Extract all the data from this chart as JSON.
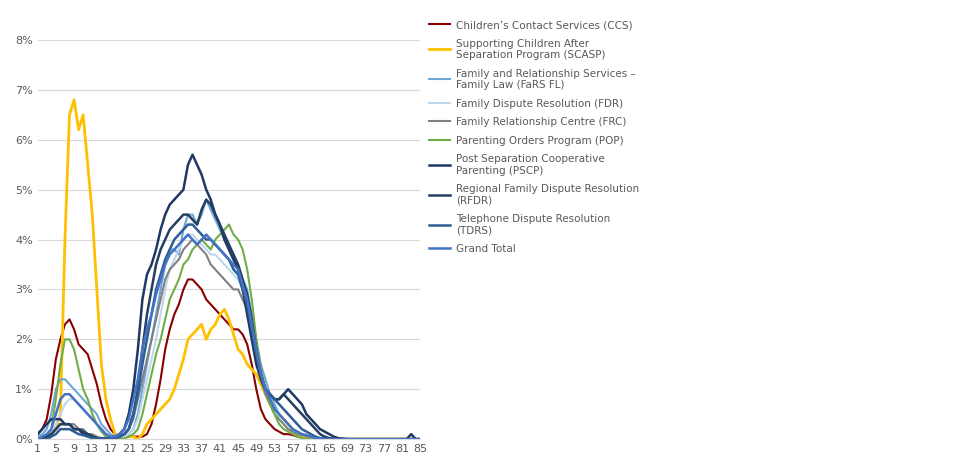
{
  "ages": [
    1,
    2,
    3,
    4,
    5,
    6,
    7,
    8,
    9,
    10,
    11,
    12,
    13,
    14,
    15,
    16,
    17,
    18,
    19,
    20,
    21,
    22,
    23,
    24,
    25,
    26,
    27,
    28,
    29,
    30,
    31,
    32,
    33,
    34,
    35,
    36,
    37,
    38,
    39,
    40,
    41,
    42,
    43,
    44,
    45,
    46,
    47,
    48,
    49,
    50,
    51,
    52,
    53,
    54,
    55,
    56,
    57,
    58,
    59,
    60,
    61,
    62,
    63,
    64,
    65,
    66,
    67,
    68,
    69,
    70,
    71,
    72,
    73,
    74,
    75,
    76,
    77,
    78,
    79,
    80,
    81,
    82,
    83,
    84,
    85
  ],
  "series": {
    "CCS": {
      "color": "#8B0000",
      "linewidth": 1.5,
      "label": "Children’s Contact Services (CCS)",
      "data": [
        0.1,
        0.2,
        0.4,
        0.9,
        1.6,
        2.0,
        2.3,
        2.4,
        2.2,
        1.9,
        1.8,
        1.7,
        1.4,
        1.1,
        0.7,
        0.4,
        0.2,
        0.1,
        0.05,
        0.05,
        0.05,
        0.05,
        0.05,
        0.05,
        0.1,
        0.3,
        0.7,
        1.2,
        1.8,
        2.2,
        2.5,
        2.7,
        3.0,
        3.2,
        3.2,
        3.1,
        3.0,
        2.8,
        2.7,
        2.6,
        2.5,
        2.4,
        2.3,
        2.2,
        2.2,
        2.1,
        1.9,
        1.5,
        1.0,
        0.6,
        0.4,
        0.3,
        0.2,
        0.15,
        0.1,
        0.1,
        0.08,
        0.05,
        0.05,
        0.05,
        0.05,
        0.02,
        0.01,
        0.01,
        0.0,
        0.0,
        0.0,
        0.0,
        0.0,
        0.0,
        0.0,
        0.0,
        0.0,
        0.0,
        0.0,
        0.0,
        0.0,
        0.0,
        0.0,
        0.0,
        0.0,
        0.0,
        0.0,
        0.0,
        0.0
      ]
    },
    "SCASP": {
      "color": "#FFC000",
      "linewidth": 2.0,
      "label": "Supporting Children After\nSeparation Program (SCASP)",
      "data": [
        0.0,
        0.0,
        0.0,
        0.1,
        0.2,
        0.5,
        4.0,
        6.5,
        6.8,
        6.2,
        6.5,
        5.5,
        4.5,
        3.0,
        1.5,
        0.8,
        0.4,
        0.1,
        0.05,
        0.05,
        0.05,
        0.05,
        0.0,
        0.1,
        0.3,
        0.4,
        0.5,
        0.6,
        0.7,
        0.8,
        1.0,
        1.3,
        1.6,
        2.0,
        2.1,
        2.2,
        2.3,
        2.0,
        2.2,
        2.3,
        2.5,
        2.6,
        2.4,
        2.1,
        1.8,
        1.7,
        1.5,
        1.4,
        1.3,
        1.1,
        0.9,
        0.7,
        0.6,
        0.5,
        0.4,
        0.3,
        0.2,
        0.1,
        0.05,
        0.0,
        0.0,
        0.0,
        0.0,
        0.0,
        0.0,
        0.0,
        0.0,
        0.0,
        0.0,
        0.0,
        0.0,
        0.0,
        0.0,
        0.0,
        0.0,
        0.0,
        0.0,
        0.0,
        0.0,
        0.0,
        0.0,
        0.0,
        0.0,
        0.0,
        0.0
      ]
    },
    "FaRS_FL": {
      "color": "#6EA6D4",
      "linewidth": 1.5,
      "label": "Family and Relationship Services –\nFamily Law (FaRS FL)",
      "data": [
        0.05,
        0.1,
        0.2,
        0.5,
        1.0,
        1.2,
        1.2,
        1.1,
        1.0,
        0.9,
        0.8,
        0.7,
        0.6,
        0.5,
        0.3,
        0.2,
        0.1,
        0.05,
        0.05,
        0.05,
        0.1,
        0.2,
        0.5,
        1.0,
        1.5,
        2.0,
        2.5,
        3.0,
        3.5,
        3.8,
        3.8,
        3.7,
        4.2,
        4.5,
        4.5,
        4.3,
        4.5,
        4.8,
        4.6,
        4.4,
        4.2,
        4.0,
        3.8,
        3.6,
        3.5,
        3.2,
        3.0,
        2.5,
        2.0,
        1.5,
        1.2,
        0.9,
        0.7,
        0.5,
        0.4,
        0.3,
        0.2,
        0.15,
        0.1,
        0.08,
        0.05,
        0.02,
        0.01,
        0.0,
        0.0,
        0.0,
        0.0,
        0.0,
        0.0,
        0.0,
        0.0,
        0.0,
        0.0,
        0.0,
        0.0,
        0.0,
        0.0,
        0.0,
        0.0,
        0.0,
        0.0,
        0.0,
        0.0,
        0.0,
        0.0
      ]
    },
    "FDR": {
      "color": "#BDD7EE",
      "linewidth": 1.5,
      "label": "Family Dispute Resolution (FDR)",
      "data": [
        0.0,
        0.02,
        0.05,
        0.1,
        0.3,
        0.5,
        0.7,
        0.8,
        0.8,
        0.7,
        0.6,
        0.5,
        0.4,
        0.3,
        0.2,
        0.1,
        0.05,
        0.02,
        0.02,
        0.05,
        0.1,
        0.2,
        0.4,
        0.8,
        1.2,
        1.6,
        2.0,
        2.5,
        3.0,
        3.4,
        3.6,
        3.8,
        4.0,
        4.1,
        4.1,
        4.0,
        3.9,
        3.8,
        3.7,
        3.7,
        3.6,
        3.5,
        3.4,
        3.3,
        3.2,
        3.0,
        2.8,
        2.4,
        1.8,
        1.3,
        1.0,
        0.8,
        0.6,
        0.4,
        0.3,
        0.2,
        0.15,
        0.1,
        0.08,
        0.06,
        0.04,
        0.02,
        0.01,
        0.0,
        0.0,
        0.0,
        0.0,
        0.0,
        0.0,
        0.0,
        0.0,
        0.0,
        0.0,
        0.0,
        0.0,
        0.0,
        0.0,
        0.0,
        0.0,
        0.0,
        0.0,
        0.0,
        0.0,
        0.0,
        0.0
      ]
    },
    "FRC": {
      "color": "#808080",
      "linewidth": 1.5,
      "label": "Family Relationship Centre (FRC)",
      "data": [
        0.0,
        0.02,
        0.05,
        0.1,
        0.2,
        0.3,
        0.3,
        0.3,
        0.3,
        0.2,
        0.2,
        0.1,
        0.1,
        0.05,
        0.02,
        0.01,
        0.01,
        0.02,
        0.05,
        0.1,
        0.2,
        0.4,
        0.8,
        1.2,
        1.6,
        2.0,
        2.4,
        2.8,
        3.2,
        3.4,
        3.5,
        3.6,
        3.8,
        3.9,
        4.0,
        3.9,
        3.8,
        3.7,
        3.5,
        3.4,
        3.3,
        3.2,
        3.1,
        3.0,
        3.0,
        2.8,
        2.6,
        2.2,
        1.7,
        1.2,
        0.9,
        0.7,
        0.5,
        0.4,
        0.3,
        0.2,
        0.15,
        0.1,
        0.08,
        0.06,
        0.04,
        0.02,
        0.01,
        0.0,
        0.0,
        0.0,
        0.0,
        0.0,
        0.0,
        0.0,
        0.0,
        0.0,
        0.0,
        0.0,
        0.0,
        0.0,
        0.0,
        0.0,
        0.0,
        0.0,
        0.0,
        0.0,
        0.0,
        0.0,
        0.0
      ]
    },
    "POP": {
      "color": "#70AD47",
      "linewidth": 1.5,
      "label": "Parenting Orders Program (POP)",
      "data": [
        0.0,
        0.02,
        0.05,
        0.2,
        0.8,
        1.5,
        2.0,
        2.0,
        1.8,
        1.4,
        1.0,
        0.8,
        0.5,
        0.3,
        0.15,
        0.05,
        0.02,
        0.01,
        0.01,
        0.01,
        0.05,
        0.1,
        0.2,
        0.5,
        0.9,
        1.3,
        1.7,
        2.0,
        2.4,
        2.8,
        3.0,
        3.2,
        3.5,
        3.6,
        3.8,
        3.9,
        4.0,
        3.9,
        3.8,
        4.0,
        4.1,
        4.2,
        4.3,
        4.1,
        4.0,
        3.8,
        3.4,
        2.8,
        2.0,
        1.4,
        1.0,
        0.7,
        0.5,
        0.3,
        0.2,
        0.15,
        0.1,
        0.05,
        0.02,
        0.01,
        0.0,
        0.0,
        0.0,
        0.0,
        0.0,
        0.0,
        0.0,
        0.0,
        0.0,
        0.0,
        0.0,
        0.0,
        0.0,
        0.0,
        0.0,
        0.0,
        0.0,
        0.0,
        0.0,
        0.0,
        0.0,
        0.0,
        0.0,
        0.0,
        0.0
      ]
    },
    "PSCP": {
      "color": "#1F3864",
      "linewidth": 1.8,
      "label": "Post Separation Cooperative\nParenting (PSCP)",
      "data": [
        0.1,
        0.2,
        0.3,
        0.4,
        0.4,
        0.4,
        0.3,
        0.3,
        0.2,
        0.2,
        0.1,
        0.1,
        0.05,
        0.02,
        0.01,
        0.01,
        0.01,
        0.05,
        0.1,
        0.2,
        0.5,
        1.0,
        1.8,
        2.8,
        3.3,
        3.5,
        3.8,
        4.2,
        4.5,
        4.7,
        4.8,
        4.9,
        5.0,
        5.5,
        5.7,
        5.5,
        5.3,
        5.0,
        4.8,
        4.5,
        4.3,
        4.0,
        3.8,
        3.6,
        3.4,
        3.0,
        2.5,
        2.0,
        1.5,
        1.2,
        1.0,
        0.9,
        0.8,
        0.8,
        0.9,
        1.0,
        0.9,
        0.8,
        0.7,
        0.5,
        0.4,
        0.3,
        0.2,
        0.15,
        0.1,
        0.05,
        0.02,
        0.01,
        0.0,
        0.0,
        0.0,
        0.0,
        0.0,
        0.0,
        0.0,
        0.0,
        0.0,
        0.0,
        0.0,
        0.0,
        0.0,
        0.0,
        0.1,
        0.0,
        0.0
      ]
    },
    "RFDR": {
      "color": "#243F60",
      "linewidth": 1.8,
      "label": "Regional Family Dispute Resolution\n(RFDR)",
      "data": [
        0.0,
        0.0,
        0.05,
        0.1,
        0.2,
        0.3,
        0.3,
        0.3,
        0.2,
        0.2,
        0.15,
        0.1,
        0.05,
        0.02,
        0.01,
        0.01,
        0.01,
        0.02,
        0.05,
        0.1,
        0.2,
        0.5,
        1.0,
        1.8,
        2.5,
        3.0,
        3.5,
        3.8,
        4.0,
        4.2,
        4.3,
        4.4,
        4.5,
        4.5,
        4.4,
        4.3,
        4.6,
        4.8,
        4.7,
        4.5,
        4.3,
        4.1,
        3.9,
        3.7,
        3.5,
        3.2,
        2.9,
        2.4,
        1.8,
        1.3,
        1.0,
        0.9,
        0.8,
        0.8,
        0.9,
        0.8,
        0.7,
        0.6,
        0.5,
        0.4,
        0.3,
        0.2,
        0.1,
        0.05,
        0.02,
        0.01,
        0.0,
        0.0,
        0.0,
        0.0,
        0.0,
        0.0,
        0.0,
        0.0,
        0.0,
        0.0,
        0.0,
        0.0,
        0.0,
        0.0,
        0.0,
        0.0,
        0.0,
        0.0,
        0.0
      ]
    },
    "TDRS": {
      "color": "#2E5E96",
      "linewidth": 1.8,
      "label": "Telephone Dispute Resolution\n(TDRS)",
      "data": [
        0.0,
        0.0,
        0.0,
        0.05,
        0.1,
        0.2,
        0.2,
        0.2,
        0.15,
        0.1,
        0.08,
        0.05,
        0.02,
        0.01,
        0.01,
        0.01,
        0.01,
        0.02,
        0.05,
        0.1,
        0.2,
        0.5,
        0.9,
        1.5,
        2.0,
        2.5,
        3.0,
        3.3,
        3.6,
        3.8,
        4.0,
        4.1,
        4.2,
        4.3,
        4.3,
        4.2,
        4.1,
        4.0,
        4.0,
        3.9,
        3.8,
        3.7,
        3.6,
        3.4,
        3.3,
        3.0,
        2.7,
        2.2,
        1.7,
        1.3,
        1.0,
        0.9,
        0.8,
        0.7,
        0.6,
        0.5,
        0.4,
        0.3,
        0.2,
        0.15,
        0.1,
        0.05,
        0.02,
        0.01,
        0.0,
        0.0,
        0.0,
        0.0,
        0.0,
        0.0,
        0.0,
        0.0,
        0.0,
        0.0,
        0.0,
        0.0,
        0.0,
        0.0,
        0.0,
        0.0,
        0.0,
        0.0,
        0.0,
        0.0,
        0.0
      ]
    },
    "GrandTotal": {
      "color": "#4472C4",
      "linewidth": 1.8,
      "label": "Grand Total",
      "data": [
        0.0,
        0.05,
        0.1,
        0.2,
        0.5,
        0.8,
        0.9,
        0.9,
        0.8,
        0.7,
        0.6,
        0.5,
        0.4,
        0.3,
        0.2,
        0.1,
        0.05,
        0.05,
        0.1,
        0.2,
        0.4,
        0.8,
        1.2,
        1.8,
        2.2,
        2.5,
        2.9,
        3.2,
        3.5,
        3.7,
        3.8,
        3.9,
        4.0,
        4.1,
        4.0,
        3.9,
        4.0,
        4.1,
        4.0,
        3.9,
        3.8,
        3.7,
        3.6,
        3.5,
        3.4,
        3.1,
        2.8,
        2.3,
        1.8,
        1.3,
        1.0,
        0.8,
        0.6,
        0.5,
        0.4,
        0.3,
        0.2,
        0.15,
        0.1,
        0.08,
        0.05,
        0.02,
        0.01,
        0.0,
        0.0,
        0.0,
        0.0,
        0.0,
        0.0,
        0.0,
        0.0,
        0.0,
        0.0,
        0.0,
        0.0,
        0.0,
        0.0,
        0.0,
        0.0,
        0.0,
        0.0,
        0.0,
        0.0,
        0.0,
        0.0
      ]
    }
  },
  "xtick_labels": [
    "1",
    "5",
    "9",
    "13",
    "17",
    "21",
    "25",
    "29",
    "33",
    "37",
    "41",
    "45",
    "49",
    "53",
    "57",
    "61",
    "65",
    "69",
    "73",
    "77",
    "81",
    "85"
  ],
  "xtick_positions": [
    1,
    5,
    9,
    13,
    17,
    21,
    25,
    29,
    33,
    37,
    41,
    45,
    49,
    53,
    57,
    61,
    65,
    69,
    73,
    77,
    81,
    85
  ],
  "ytick_labels": [
    "0%",
    "1%",
    "2%",
    "3%",
    "4%",
    "5%",
    "6%",
    "7%",
    "8%"
  ],
  "ytick_values": [
    0,
    1,
    2,
    3,
    4,
    5,
    6,
    7,
    8
  ],
  "ylim": [
    0,
    8.5
  ],
  "xlim": [
    1,
    85
  ],
  "background_color": "#ffffff",
  "grid_color": "#D9D9D9",
  "text_color": "#595959"
}
